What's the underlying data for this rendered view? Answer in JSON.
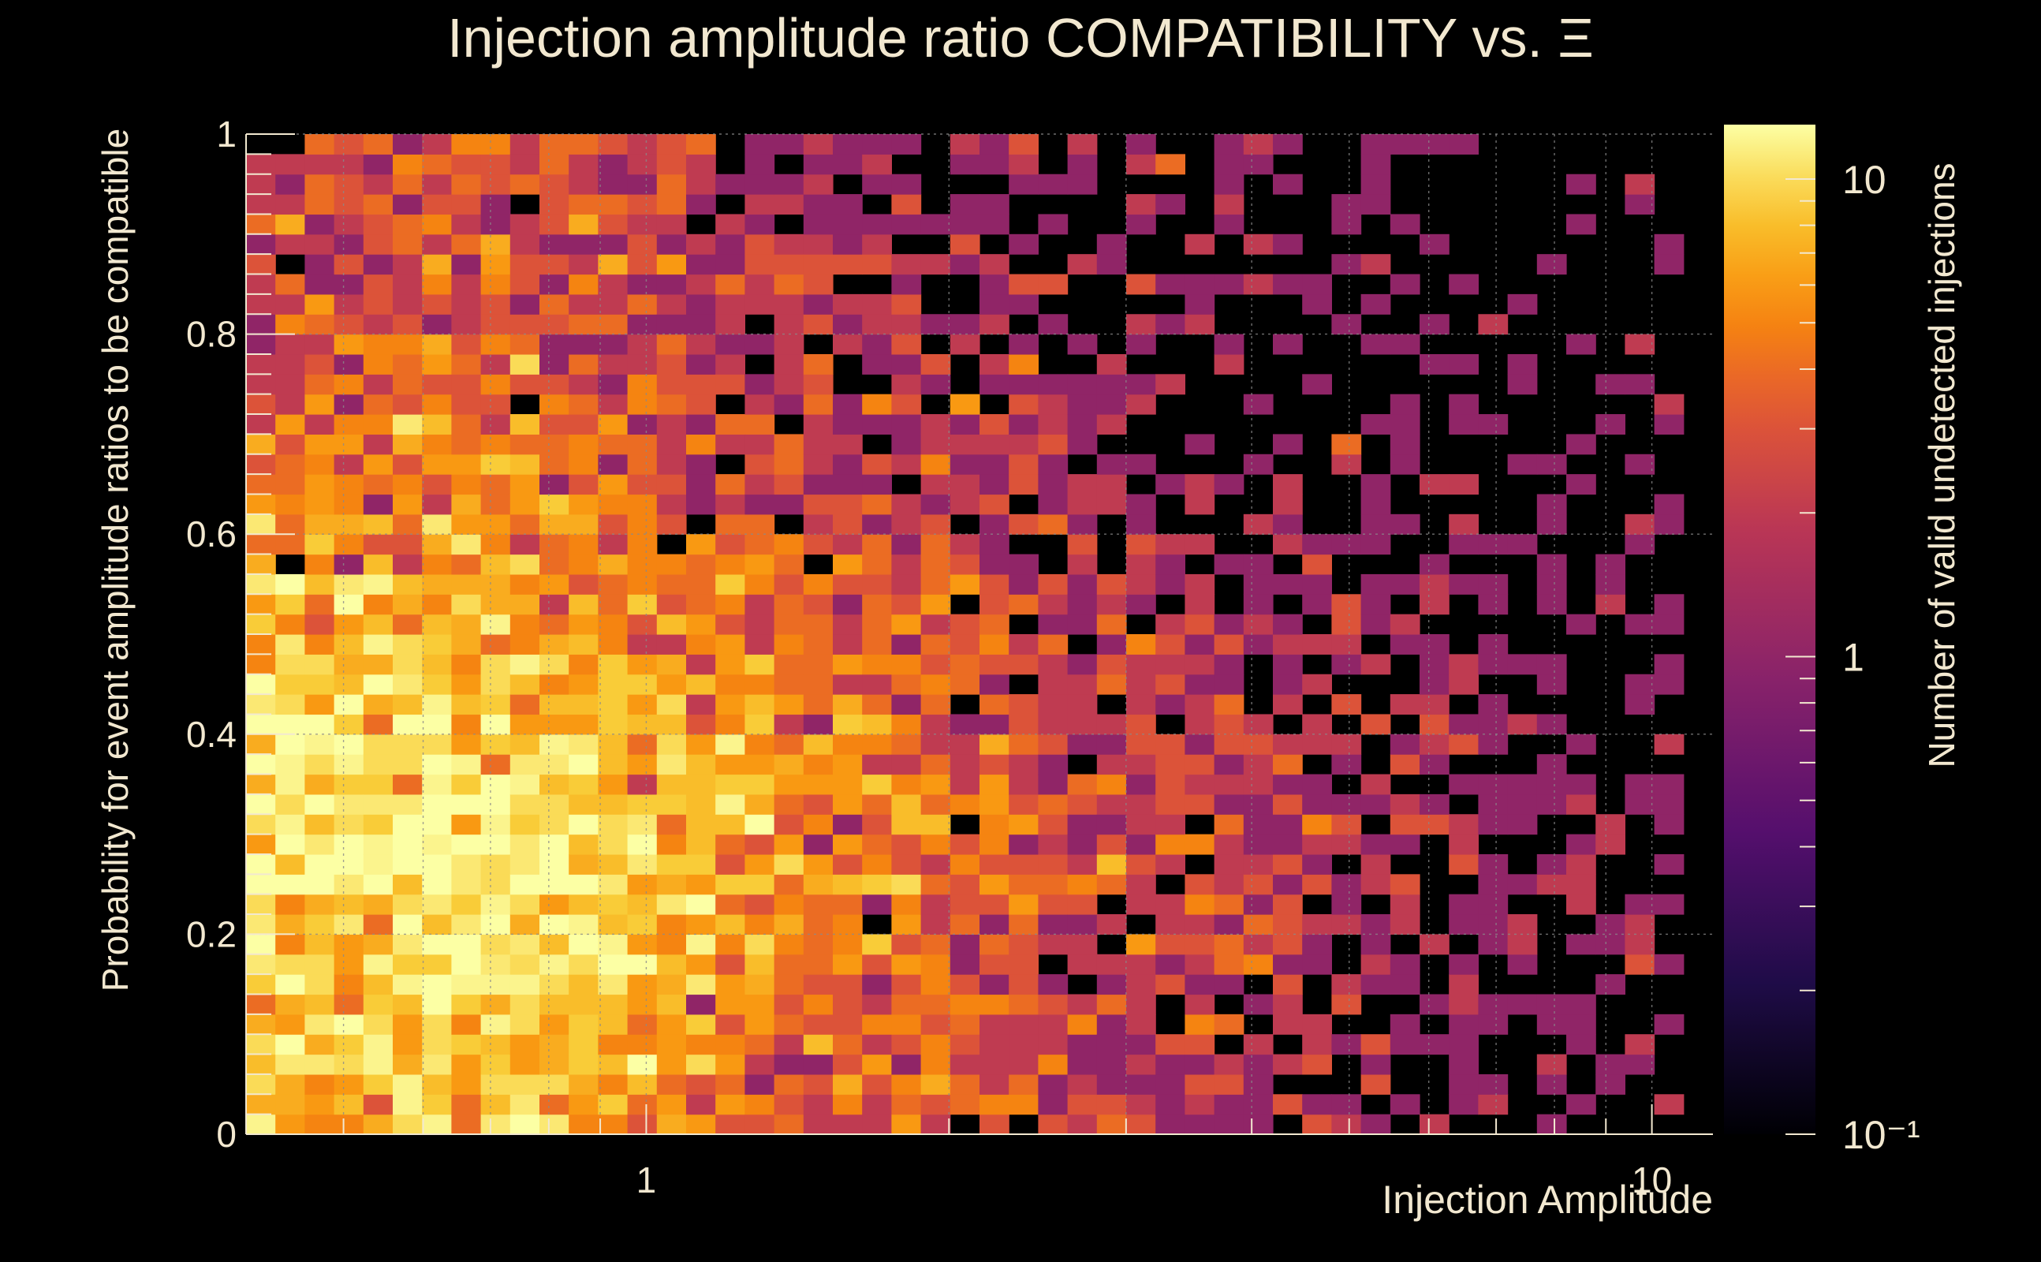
{
  "chart_data": {
    "type": "heatmap",
    "title": "Injection amplitude ratio COMPATIBILITY vs.  Ξ",
    "xlabel": "Injection Amplitude",
    "ylabel": "Probability for event amplitude ratios to be compatible",
    "zlabel": "Number of valid undetected injections",
    "x_scale": "log",
    "xlim": [
      0.4,
      11.5
    ],
    "ylim": [
      0,
      1
    ],
    "z_scale": "log",
    "zlim": [
      0.1,
      13
    ],
    "grid": true,
    "x_tick_labels": [
      "1",
      "10"
    ],
    "y_tick_labels": [
      "0",
      "0.2",
      "0.4",
      "0.6",
      "0.8",
      "1"
    ],
    "z_tick_labels": [
      "10⁻¹",
      "1",
      "10"
    ],
    "colormap": "inferno",
    "n_xbins": 50,
    "n_ybins": 50,
    "density_model": {
      "description": "approximate counts per bin: dense region at low amplitude and probability ~0.2-0.5, fading toward high amplitude",
      "peak_value": 12,
      "peak_x": 0.75,
      "peak_y": 0.27
    }
  },
  "colors": {
    "background": "#000000",
    "text": "#f2e8d0",
    "grid": "#8a8a8a"
  }
}
